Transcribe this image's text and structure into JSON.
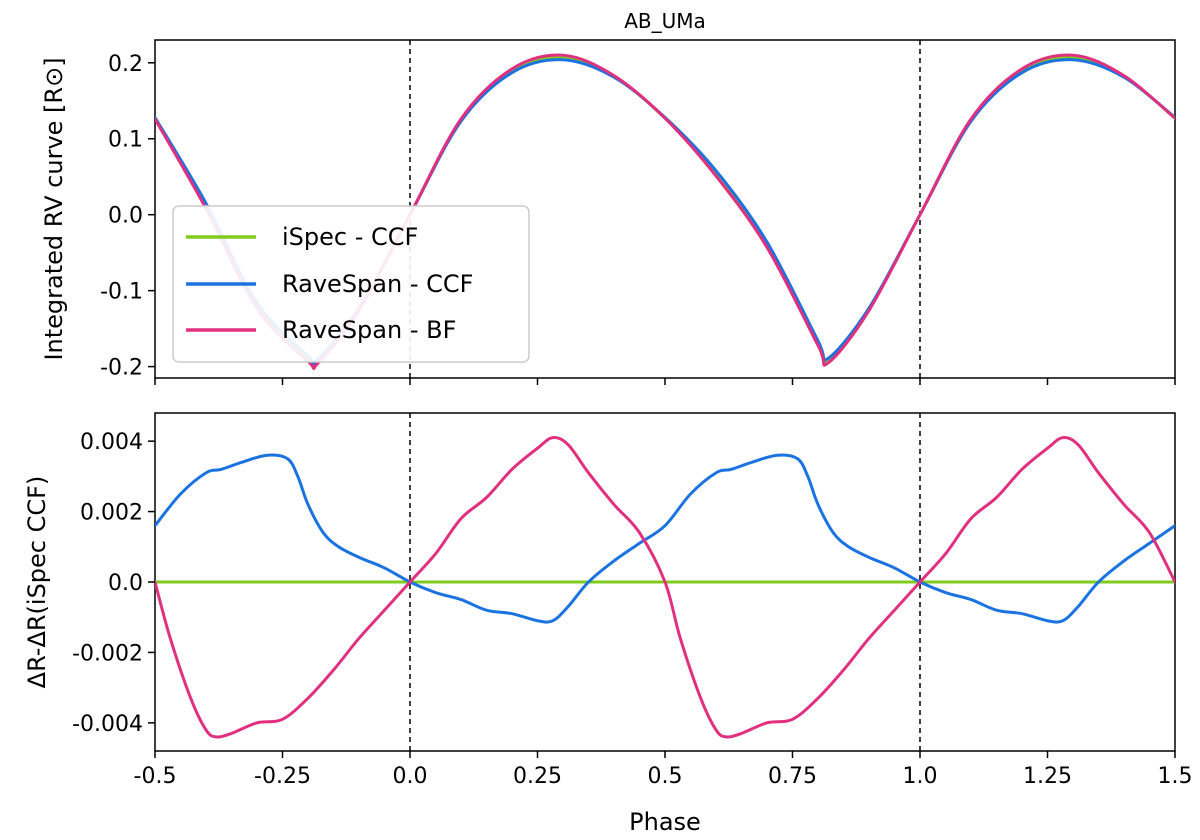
{
  "chart_data": [
    {
      "type": "line",
      "title": "AB_UMa",
      "xlabel": "",
      "ylabel": "Integrated RV curve [R⊙]",
      "xlim": [
        -0.5,
        1.5
      ],
      "ylim": [
        -0.215,
        0.23
      ],
      "x_ticks": [
        -0.5,
        -0.25,
        0.0,
        0.25,
        0.5,
        0.75,
        1.0,
        1.25,
        1.5
      ],
      "y_ticks": [
        0.2,
        0.1,
        0.0,
        -0.1,
        -0.2
      ],
      "y_tick_labels": [
        "0.2",
        "0.1",
        "0.0",
        "-0.1",
        "-0.2"
      ],
      "vlines": [
        0.0,
        1.0
      ],
      "legend": {
        "position": "center-left",
        "entries": [
          "iSpec - CCF",
          "RaveSpan - CCF",
          "RaveSpan - BF"
        ]
      },
      "series": [
        {
          "name": "iSpec - CCF",
          "color": "#7fcc1e",
          "x": [
            -0.5,
            -0.4,
            -0.3,
            -0.2,
            -0.18,
            -0.1,
            0.0,
            0.1,
            0.2,
            0.3,
            0.4,
            0.5,
            0.6,
            0.7,
            0.8,
            0.82,
            0.9,
            1.0,
            1.1,
            1.2,
            1.3,
            1.4,
            1.5
          ],
          "values": [
            0.126,
            0.012,
            -0.119,
            -0.189,
            -0.191,
            -0.124,
            0.0,
            0.124,
            0.189,
            0.207,
            0.182,
            0.127,
            0.055,
            -0.039,
            -0.168,
            -0.191,
            -0.124,
            0.0,
            0.124,
            0.189,
            0.207,
            0.182,
            0.127
          ]
        },
        {
          "name": "RaveSpan - CCF",
          "color": "#1a73e0",
          "x": [
            -0.5,
            -0.4,
            -0.3,
            -0.2,
            -0.18,
            -0.1,
            0.0,
            0.1,
            0.2,
            0.3,
            0.4,
            0.5,
            0.6,
            0.7,
            0.8,
            0.82,
            0.9,
            1.0,
            1.1,
            1.2,
            1.3,
            1.4,
            1.5
          ],
          "values": [
            0.128,
            0.015,
            -0.116,
            -0.186,
            -0.189,
            -0.123,
            0.0,
            0.123,
            0.187,
            0.204,
            0.181,
            0.128,
            0.058,
            -0.036,
            -0.166,
            -0.189,
            -0.123,
            0.0,
            0.123,
            0.187,
            0.204,
            0.181,
            0.128
          ]
        },
        {
          "name": "RaveSpan - BF",
          "color": "#e0307f",
          "x": [
            -0.5,
            -0.4,
            -0.3,
            -0.2,
            -0.18,
            -0.1,
            0.0,
            0.1,
            0.2,
            0.3,
            0.4,
            0.5,
            0.6,
            0.7,
            0.8,
            0.82,
            0.9,
            1.0,
            1.1,
            1.2,
            1.3,
            1.4,
            1.5
          ],
          "values": [
            0.126,
            0.008,
            -0.123,
            -0.193,
            -0.195,
            -0.126,
            0.0,
            0.126,
            0.192,
            0.21,
            0.183,
            0.127,
            0.051,
            -0.043,
            -0.172,
            -0.195,
            -0.126,
            0.0,
            0.126,
            0.192,
            0.21,
            0.183,
            0.127
          ]
        }
      ]
    },
    {
      "type": "line",
      "title": "",
      "xlabel": "Phase",
      "ylabel": "ΔR-ΔR(iSpec CCF)",
      "xlim": [
        -0.5,
        1.5
      ],
      "ylim": [
        -0.0048,
        0.0048
      ],
      "x_ticks": [
        -0.5,
        -0.25,
        0.0,
        0.25,
        0.5,
        0.75,
        1.0,
        1.25,
        1.5
      ],
      "x_tick_labels": [
        "-0.5",
        "-0.25",
        "0.0",
        "0.25",
        "0.5",
        "0.75",
        "1.0",
        "1.25",
        "1.5"
      ],
      "y_ticks": [
        0.004,
        0.002,
        0.0,
        -0.002,
        -0.004
      ],
      "y_tick_labels": [
        "0.004",
        "0.002",
        "0.0",
        "-0.002",
        "-0.004"
      ],
      "vlines": [
        0.0,
        1.0
      ],
      "series": [
        {
          "name": "iSpec - CCF",
          "color": "#7fcc1e",
          "x": [
            -0.5,
            1.5
          ],
          "values": [
            0.0,
            0.0
          ]
        },
        {
          "name": "RaveSpan - CCF",
          "color": "#1a73e0",
          "x": [
            -0.5,
            -0.45,
            -0.4,
            -0.37,
            -0.33,
            -0.28,
            -0.24,
            -0.22,
            -0.2,
            -0.17,
            -0.14,
            -0.1,
            -0.05,
            0.0,
            0.05,
            0.1,
            0.15,
            0.2,
            0.25,
            0.28,
            0.31,
            0.35,
            0.4,
            0.45,
            0.5,
            0.55,
            0.6,
            0.63,
            0.67,
            0.72,
            0.76,
            0.78,
            0.8,
            0.83,
            0.86,
            0.9,
            0.95,
            1.0,
            1.05,
            1.1,
            1.15,
            1.2,
            1.25,
            1.28,
            1.31,
            1.35,
            1.4,
            1.45,
            1.5
          ],
          "values": [
            0.0016,
            0.0025,
            0.0031,
            0.0032,
            0.0034,
            0.0036,
            0.0035,
            0.003,
            0.0022,
            0.0014,
            0.001,
            0.0007,
            0.0004,
            0.0,
            -0.0003,
            -0.0005,
            -0.0008,
            -0.0009,
            -0.0011,
            -0.0011,
            -0.0007,
            0.0,
            0.0006,
            0.0011,
            0.0016,
            0.0025,
            0.0031,
            0.0032,
            0.0034,
            0.0036,
            0.0035,
            0.003,
            0.0022,
            0.0014,
            0.001,
            0.0007,
            0.0004,
            0.0,
            -0.0003,
            -0.0005,
            -0.0008,
            -0.0009,
            -0.0011,
            -0.0011,
            -0.0007,
            0.0,
            0.0006,
            0.0011,
            0.0016
          ]
        },
        {
          "name": "RaveSpan - BF",
          "color": "#e0307f",
          "x": [
            -0.5,
            -0.47,
            -0.43,
            -0.4,
            -0.38,
            -0.35,
            -0.3,
            -0.25,
            -0.2,
            -0.15,
            -0.1,
            -0.05,
            0.0,
            0.05,
            0.1,
            0.15,
            0.2,
            0.25,
            0.28,
            0.31,
            0.35,
            0.4,
            0.45,
            0.5,
            0.53,
            0.57,
            0.6,
            0.62,
            0.65,
            0.7,
            0.75,
            0.8,
            0.85,
            0.9,
            0.95,
            1.0,
            1.05,
            1.1,
            1.15,
            1.2,
            1.25,
            1.28,
            1.31,
            1.35,
            1.4,
            1.45,
            1.5
          ],
          "values": [
            0.0,
            -0.0016,
            -0.0033,
            -0.0042,
            -0.0044,
            -0.0043,
            -0.004,
            -0.0039,
            -0.0033,
            -0.0025,
            -0.0016,
            -0.0008,
            0.0,
            0.0008,
            0.0018,
            0.0024,
            0.0032,
            0.0038,
            0.0041,
            0.0039,
            0.0031,
            0.0022,
            0.0014,
            0.0,
            -0.0016,
            -0.0033,
            -0.0042,
            -0.0044,
            -0.0043,
            -0.004,
            -0.0039,
            -0.0033,
            -0.0025,
            -0.0016,
            -0.0008,
            0.0,
            0.0008,
            0.0018,
            0.0024,
            0.0032,
            0.0038,
            0.0041,
            0.0039,
            0.0031,
            0.0022,
            0.0014,
            0.0
          ]
        }
      ]
    }
  ]
}
